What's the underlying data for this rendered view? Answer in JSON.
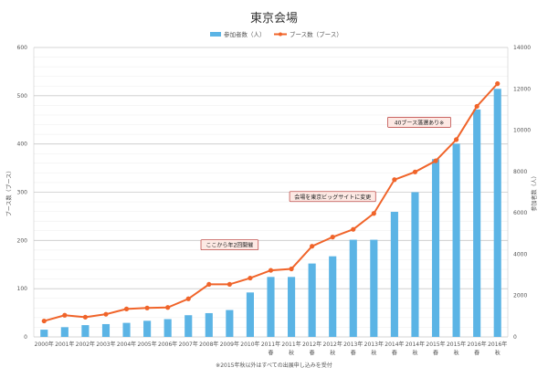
{
  "chart_data": {
    "type": "bar",
    "title": "東京会場",
    "x_ticks": [
      [
        "2000年"
      ],
      [
        "2001年"
      ],
      [
        "2002年"
      ],
      [
        "2003年"
      ],
      [
        "2004年"
      ],
      [
        "2005年"
      ],
      [
        "2006年"
      ],
      [
        "2007年"
      ],
      [
        "2008年"
      ],
      [
        "2009年"
      ],
      [
        "2010年"
      ],
      [
        "2011年",
        "春"
      ],
      [
        "2011年",
        "秋"
      ],
      [
        "2012年",
        "春"
      ],
      [
        "2012年",
        "秋"
      ],
      [
        "2013年",
        "春"
      ],
      [
        "2013年",
        "秋"
      ],
      [
        "2014年",
        "春"
      ],
      [
        "2014年",
        "秋"
      ],
      [
        "2015年",
        "春"
      ],
      [
        "2015年",
        "秋"
      ],
      [
        "2016年",
        "春"
      ],
      [
        "2016年",
        "秋"
      ]
    ],
    "series": [
      {
        "name": "参加者数（人）",
        "type": "bar",
        "axis": "right",
        "color": "#5bb4e5",
        "values": [
          350,
          470,
          570,
          620,
          680,
          780,
          860,
          1050,
          1150,
          1300,
          2150,
          2900,
          2900,
          3550,
          3900,
          4700,
          4700,
          6050,
          7000,
          8600,
          9350,
          11000,
          12000
        ]
      },
      {
        "name": "ブース数（ブース）",
        "type": "line",
        "axis": "left",
        "color": "#f0642a",
        "values": [
          33,
          45,
          41,
          47,
          58,
          60,
          61,
          79,
          109,
          109,
          122,
          138,
          141,
          188,
          207,
          223,
          256,
          326,
          342,
          365,
          409,
          478,
          525
        ]
      }
    ],
    "y_left": {
      "label": "ブース数（ブース）",
      "min": 0,
      "max": 600,
      "ticks": [
        0,
        100,
        200,
        300,
        400,
        500,
        600
      ]
    },
    "y_right": {
      "label": "参加者数（人）",
      "min": 0,
      "max": 14000,
      "ticks": [
        0,
        2000,
        4000,
        6000,
        8000,
        10000,
        12000,
        14000
      ]
    },
    "annotations": [
      {
        "text": "ここから年2回開催",
        "at_index": 9,
        "y_left": 190
      },
      {
        "text": "会場を東京ビッグサイトに変更",
        "at_index": 14,
        "y_left": 290
      },
      {
        "text": "40ブース落選あり※",
        "at_index": 18.2,
        "y_left": 444
      }
    ],
    "legend_position": "top",
    "grid": true,
    "footnote": "※2015年秋以外はすべての出展申し込みを受付"
  }
}
